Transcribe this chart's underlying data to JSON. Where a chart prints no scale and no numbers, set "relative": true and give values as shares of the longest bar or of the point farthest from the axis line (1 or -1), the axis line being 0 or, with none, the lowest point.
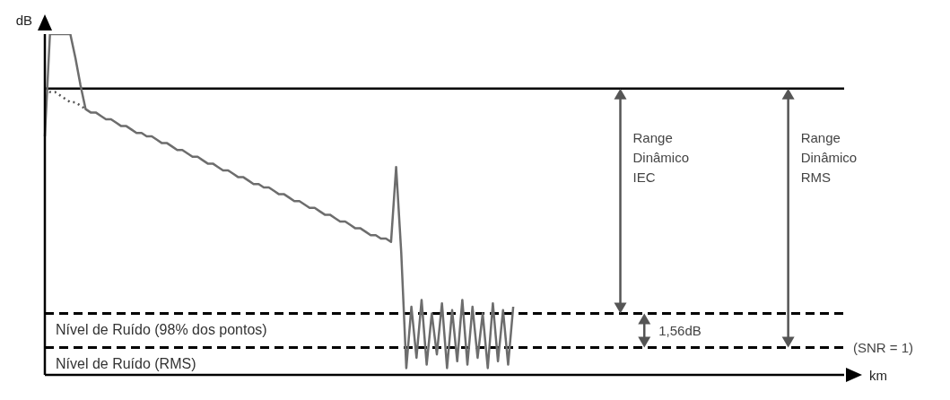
{
  "chart_data": {
    "type": "line",
    "relative": true,
    "ylabel": "dB",
    "xlabel": "km",
    "categories": [
      null,
      null,
      null,
      null,
      null,
      null,
      null,
      null,
      null,
      null,
      null,
      null,
      null,
      null,
      null,
      null,
      null,
      null,
      null,
      null,
      null,
      null,
      null,
      null,
      null,
      null,
      null,
      null,
      null,
      null,
      null,
      null,
      null,
      null,
      null,
      null,
      null,
      null,
      null,
      null,
      null,
      null,
      null,
      null,
      null,
      null,
      null,
      null,
      null,
      null,
      null,
      null,
      null,
      null,
      null,
      null,
      null,
      null,
      null,
      null,
      null,
      null,
      null,
      null,
      null,
      null,
      null,
      null,
      null,
      null,
      null,
      null,
      null,
      null,
      null,
      null,
      null,
      null,
      null,
      null,
      null,
      null,
      null,
      null,
      null,
      null,
      null,
      null,
      null,
      null,
      null,
      null,
      null,
      null,
      null,
      null,
      null,
      null,
      null,
      null,
      null,
      null,
      null,
      null,
      null,
      null,
      null,
      null,
      null,
      null,
      null,
      null,
      null,
      null,
      null,
      null,
      null,
      null,
      null,
      null,
      null,
      null,
      null,
      null,
      null,
      null,
      null,
      null,
      null,
      null,
      null,
      null,
      null,
      null,
      null,
      null,
      null,
      null,
      null,
      null,
      null,
      null,
      null,
      null,
      null,
      null,
      null,
      null,
      null,
      null,
      null,
      null,
      null,
      null,
      null,
      null,
      null,
      null
    ],
    "series": [
      {
        "color": "#6d6d6d",
        "line_style": "solid",
        "values": [
          0.7,
          1,
          1,
          1,
          1,
          1,
          0.93,
          0.85,
          0.78,
          0.77,
          0.77,
          0.76,
          0.75,
          0.75,
          0.74,
          0.73,
          0.73,
          0.72,
          0.71,
          0.71,
          0.7,
          0.7,
          0.69,
          0.68,
          0.68,
          0.67,
          0.66,
          0.66,
          0.65,
          0.64,
          0.64,
          0.63,
          0.62,
          0.62,
          0.61,
          0.6,
          0.6,
          0.59,
          0.58,
          0.58,
          0.57,
          0.56,
          0.56,
          0.55,
          0.55,
          0.54,
          0.53,
          0.53,
          0.52,
          0.51,
          0.51,
          0.5,
          0.49,
          0.49,
          0.48,
          0.47,
          0.47,
          0.46,
          0.45,
          0.45,
          0.44,
          0.43,
          0.43,
          0.42,
          0.41,
          0.41,
          0.4,
          0.4,
          0.39,
          0.61,
          0.36,
          0.02,
          0.2,
          0.05,
          0.22,
          0.03,
          0.18,
          0.06,
          0.21,
          0.02,
          0.19,
          0.04,
          0.22,
          0.03,
          0.2,
          0.05,
          0.18,
          0.02,
          0.21,
          0.04,
          0.19,
          0.03,
          0.2,
          null,
          null,
          null,
          null,
          null,
          null,
          null,
          null,
          null,
          null,
          null,
          null,
          null,
          null,
          null,
          null,
          null,
          null,
          null,
          null,
          null,
          null,
          null,
          null,
          null,
          null,
          null,
          null,
          null,
          null,
          null,
          null,
          null,
          null,
          null,
          null,
          null,
          null,
          null,
          null,
          null,
          null,
          null,
          null,
          null,
          null,
          null,
          null,
          null,
          null,
          null,
          null,
          null,
          null,
          null,
          null,
          null,
          null,
          null,
          null,
          null,
          null,
          null,
          null,
          null
        ]
      },
      {
        "color": "#555555",
        "line_style": "dotted",
        "values": [
          0.84,
          0.83,
          0.83,
          0.82,
          0.81,
          0.8,
          0.8,
          0.79,
          0.78,
          null,
          null,
          null,
          null,
          null,
          null,
          null,
          null,
          null,
          null,
          null,
          null,
          null,
          null,
          null,
          null,
          null,
          null,
          null,
          null,
          null,
          null,
          null,
          null,
          null,
          null,
          null,
          null,
          null,
          null,
          null,
          null,
          null,
          null,
          null,
          null,
          null,
          null,
          null,
          null,
          null,
          null,
          null,
          null,
          null,
          null,
          null,
          null,
          null,
          null,
          null,
          null,
          null,
          null,
          null,
          null,
          null,
          null,
          null,
          null,
          null,
          null,
          null,
          null,
          null,
          null,
          null,
          null,
          null,
          null,
          null,
          null,
          null,
          null,
          null,
          null,
          null,
          null,
          null,
          null,
          null,
          null,
          null,
          null,
          null,
          null,
          null,
          null,
          null,
          null,
          null,
          null,
          null,
          null,
          null,
          null,
          null,
          null,
          null,
          null,
          null,
          null,
          null,
          null,
          null,
          null,
          null,
          null,
          null,
          null,
          null,
          null,
          null,
          null,
          null,
          null,
          null,
          null,
          null,
          null,
          null,
          null,
          null,
          null,
          null,
          null,
          null,
          null,
          null,
          null,
          null,
          null,
          null,
          null,
          null,
          null,
          null,
          null,
          null,
          null,
          null,
          null,
          null,
          null,
          null,
          null,
          null,
          null,
          null
        ]
      }
    ],
    "ref_lines": [
      {
        "axis": "y",
        "value": 0.84,
        "color": "#000000",
        "line_style": "solid"
      },
      {
        "axis": "y",
        "value": 0.18,
        "label": "Nível de Ruído (98% dos pontos)",
        "color": "#000000",
        "line_style": "dashed"
      },
      {
        "axis": "y",
        "value": 0.08,
        "label": "Nível de Ruído (RMS)",
        "color": "#000000",
        "line_style": "dashed"
      }
    ],
    "annotations": [
      "Range Dinâmico IEC",
      "Range Dinâmico RMS",
      "1,56dB",
      "(SNR = 1)"
    ]
  }
}
